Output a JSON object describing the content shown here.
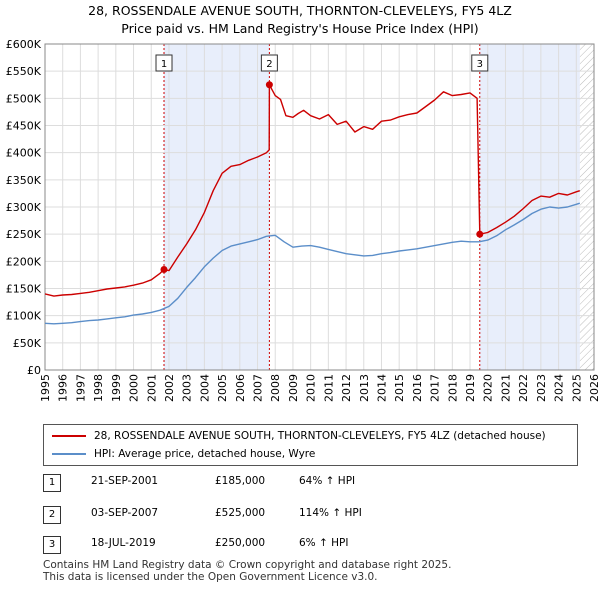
{
  "title": {
    "line1": "28, ROSSENDALE AVENUE SOUTH, THORNTON-CLEVELEYS, FY5 4LZ",
    "line2": "Price paid vs. HM Land Registry's House Price Index (HPI)"
  },
  "legend": {
    "red_label": "28, ROSSENDALE AVENUE SOUTH, THORNTON-CLEVELEYS, FY5 4LZ (detached house)",
    "blue_label": "HPI: Average price, detached house, Wyre"
  },
  "sales": [
    {
      "num": "1",
      "date": "21-SEP-2001",
      "price": "£185,000",
      "hpi": "64% ↑ HPI"
    },
    {
      "num": "2",
      "date": "03-SEP-2007",
      "price": "£525,000",
      "hpi": "114% ↑ HPI"
    },
    {
      "num": "3",
      "date": "18-JUL-2019",
      "price": "£250,000",
      "hpi": "6% ↑ HPI"
    }
  ],
  "footer": {
    "line1": "Contains HM Land Registry data © Crown copyright and database right 2025.",
    "line2": "This data is licensed under the Open Government Licence v3.0."
  },
  "colors": {
    "red": "#cc0000",
    "blue": "#5b8ec9",
    "shade": "#e8eefb",
    "hatch": "#bbbbbb",
    "grid": "#dddddd"
  },
  "chart_data": {
    "type": "line",
    "xlim": [
      1995,
      2026
    ],
    "ylim": [
      0,
      600000
    ],
    "yticks": [
      0,
      50000,
      100000,
      150000,
      200000,
      250000,
      300000,
      350000,
      400000,
      450000,
      500000,
      550000,
      600000
    ],
    "ytick_labels": [
      "£0",
      "£50K",
      "£100K",
      "£150K",
      "£200K",
      "£250K",
      "£300K",
      "£350K",
      "£400K",
      "£450K",
      "£500K",
      "£550K",
      "£600K"
    ],
    "xticks": [
      1995,
      1996,
      1997,
      1998,
      1999,
      2000,
      2001,
      2002,
      2003,
      2004,
      2005,
      2006,
      2007,
      2008,
      2009,
      2010,
      2011,
      2012,
      2013,
      2014,
      2015,
      2016,
      2017,
      2018,
      2019,
      2020,
      2021,
      2022,
      2023,
      2024,
      2025,
      2026
    ],
    "xtick_labels": [
      "1995",
      "1996",
      "1997",
      "1998",
      "1999",
      "2000",
      "2001",
      "2002",
      "2003",
      "2004",
      "2005",
      "2006",
      "2007",
      "2008",
      "2009",
      "2010",
      "2011",
      "2012",
      "2013",
      "2014",
      "2015",
      "2016",
      "2017",
      "2018",
      "2019",
      "2020",
      "2021",
      "2022",
      "2023",
      "2024",
      "2025",
      "2026"
    ],
    "shaded_ranges": [
      [
        2001.72,
        2007.67
      ],
      [
        2019.55,
        2025.2
      ]
    ],
    "hatched_from": 2025.2,
    "markers": [
      {
        "label": "1",
        "x": 2001.72,
        "y": 185000
      },
      {
        "label": "2",
        "x": 2007.67,
        "y": 525000
      },
      {
        "label": "3",
        "x": 2019.55,
        "y": 250000
      }
    ],
    "series": [
      {
        "name": "28, ROSSENDALE AVENUE SOUTH, THORNTON-CLEVELEYS, FY5 4LZ (detached house)",
        "color": "#cc0000",
        "x": [
          1995,
          1995.5,
          1996,
          1996.5,
          1997,
          1997.5,
          1998,
          1998.5,
          1999,
          1999.5,
          2000,
          2000.5,
          2001,
          2001.5,
          2001.72,
          2002,
          2002.5,
          2003,
          2003.5,
          2004,
          2004.5,
          2005,
          2005.5,
          2006,
          2006.5,
          2007,
          2007.5,
          2007.66,
          2007.67,
          2008,
          2008.3,
          2008.6,
          2009,
          2009.3,
          2009.6,
          2010,
          2010.5,
          2011,
          2011.5,
          2012,
          2012.5,
          2013,
          2013.5,
          2014,
          2014.5,
          2015,
          2015.5,
          2016,
          2016.5,
          2017,
          2017.5,
          2018,
          2018.5,
          2019,
          2019.4,
          2019.55,
          2020,
          2020.5,
          2021,
          2021.5,
          2022,
          2022.5,
          2023,
          2023.5,
          2024,
          2024.5,
          2025,
          2025.2
        ],
        "values": [
          140000,
          136000,
          138000,
          139000,
          141000,
          143000,
          146000,
          149000,
          151000,
          153000,
          156000,
          160000,
          166000,
          178000,
          185000,
          183000,
          208000,
          232000,
          258000,
          290000,
          330000,
          362000,
          375000,
          378000,
          386000,
          392000,
          400000,
          405000,
          525000,
          505000,
          498000,
          468000,
          465000,
          472000,
          478000,
          468000,
          462000,
          470000,
          452000,
          458000,
          438000,
          448000,
          443000,
          458000,
          460000,
          466000,
          470000,
          473000,
          485000,
          497000,
          512000,
          505000,
          507000,
          510000,
          500000,
          250000,
          253000,
          262000,
          272000,
          283000,
          297000,
          312000,
          320000,
          318000,
          325000,
          322000,
          328000,
          330000
        ]
      },
      {
        "name": "HPI: Average price, detached house, Wyre",
        "color": "#5b8ec9",
        "x": [
          1995,
          1995.5,
          1996,
          1996.5,
          1997,
          1997.5,
          1998,
          1998.5,
          1999,
          1999.5,
          2000,
          2000.5,
          2001,
          2001.5,
          2002,
          2002.5,
          2003,
          2003.5,
          2004,
          2004.5,
          2005,
          2005.5,
          2006,
          2006.5,
          2007,
          2007.5,
          2008,
          2008.5,
          2009,
          2009.5,
          2010,
          2010.5,
          2011,
          2011.5,
          2012,
          2012.5,
          2013,
          2013.5,
          2014,
          2014.5,
          2015,
          2015.5,
          2016,
          2016.5,
          2017,
          2017.5,
          2018,
          2018.5,
          2019,
          2019.5,
          2020,
          2020.5,
          2021,
          2021.5,
          2022,
          2022.5,
          2023,
          2023.5,
          2024,
          2024.5,
          2025,
          2025.2
        ],
        "values": [
          86000,
          85000,
          86000,
          87000,
          89000,
          91000,
          92000,
          94000,
          96000,
          98000,
          101000,
          103000,
          106000,
          110000,
          117000,
          132000,
          152000,
          170000,
          190000,
          206000,
          220000,
          228000,
          232000,
          236000,
          240000,
          246000,
          248000,
          236000,
          226000,
          228000,
          229000,
          226000,
          222000,
          218000,
          214000,
          212000,
          210000,
          211000,
          214000,
          216000,
          219000,
          221000,
          223000,
          226000,
          229000,
          232000,
          235000,
          237000,
          236000,
          236000,
          239000,
          247000,
          258000,
          267000,
          277000,
          288000,
          296000,
          300000,
          298000,
          300000,
          305000,
          307000
        ]
      }
    ]
  }
}
